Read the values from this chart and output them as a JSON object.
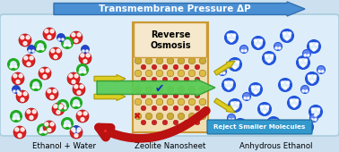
{
  "fig_width": 3.78,
  "fig_height": 1.7,
  "dpi": 100,
  "bg_color": "#cce0f0",
  "panel_bg": "#ddeefa",
  "panel_edge": "#aaccdd",
  "title_text": "Transmembrane Pressure ΔP",
  "title_arrow_color": "#4a8fd4",
  "title_arrow_edge": "#3070b0",
  "title_text_color": "white",
  "label_left": "Ethanol + Water",
  "label_center": "Zeolite Nanosheet",
  "label_right": "Anhydrous Ethanol",
  "reverse_osmosis_text": "Reverse\nOsmosis",
  "reject_text": "Reject Smaller Molecules",
  "green_arrow_color": "#55cc55",
  "green_arrow_edge": "#339933",
  "red_arrow_color": "#ee3333",
  "red_arrow_edge": "#bb1111",
  "yellow_arrow_color": "#ddcc22",
  "yellow_arrow_edge": "#aa9900",
  "reject_box_color": "#3399cc",
  "nanosheet_bg": "#f0ddb0",
  "nanosheet_edge": "#cc9933",
  "ro_box_bg": "#f5e8cc",
  "ro_box_edge": "#cc9933",
  "ethanol_red": "#dd2020",
  "ethanol_red_edge": "#aa1010",
  "water_green": "#22aa22",
  "water_blue": "#2244cc",
  "water_blue_edge": "#1133aa",
  "right_ethanol_ring": "#2255dd",
  "right_ethanol_fill": "#6688ee",
  "atom_yellow1": "#ccaa33",
  "atom_yellow2": "#ddbb44",
  "atom_red": "#cc2222",
  "checkmark_color": "#1133cc",
  "xmark_color": "#cc1111"
}
